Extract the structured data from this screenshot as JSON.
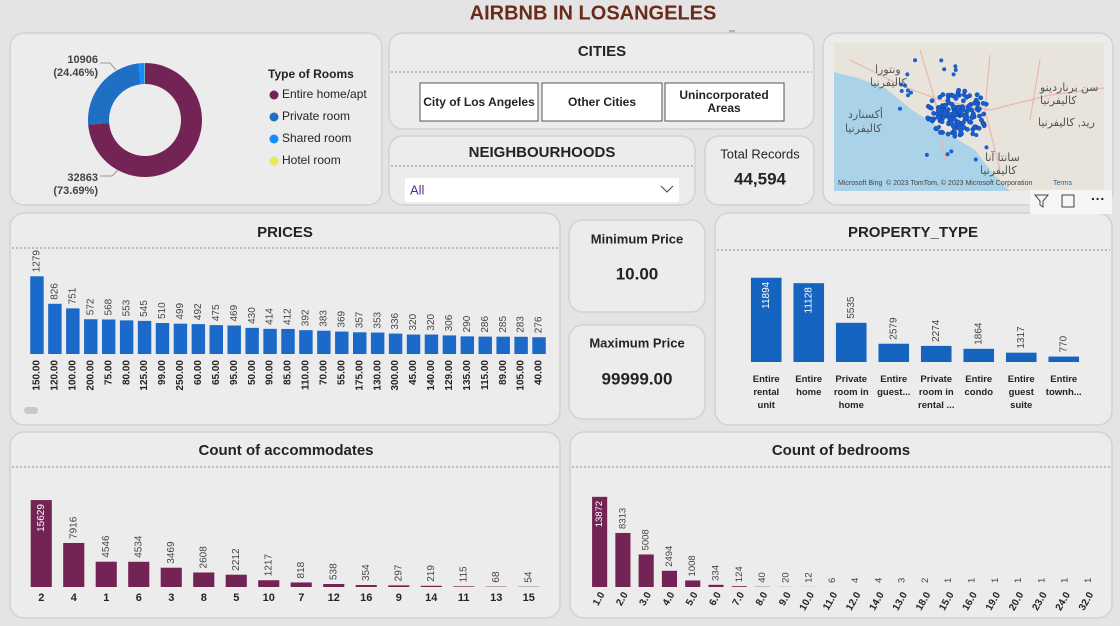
{
  "header": {
    "title": "AIRBNB IN LOSANGELES"
  },
  "chart_data": [
    {
      "type": "pie",
      "donut": true,
      "legend_title": "Type of Rooms",
      "categories": [
        "Entire home/apt",
        "Private room",
        "Shared room",
        "Hotel room"
      ],
      "values": [
        32863,
        10906,
        780,
        45
      ],
      "value_labels": [
        "32863 (73.69%)",
        "10906 (24.46%)",
        null,
        null
      ],
      "colors": [
        "#742454",
        "#1f6fc5",
        "#118dff",
        "#e8e85a"
      ]
    },
    {
      "type": "bar",
      "title": "PRICES",
      "categories": [
        "150.00",
        "120.00",
        "100.00",
        "200.00",
        "75.00",
        "80.00",
        "125.00",
        "99.00",
        "250.00",
        "60.00",
        "65.00",
        "95.00",
        "50.00",
        "90.00",
        "85.00",
        "110.00",
        "70.00",
        "55.00",
        "175.00",
        "130.00",
        "300.00",
        "45.00",
        "140.00",
        "129.00",
        "135.00",
        "115.00",
        "89.00",
        "105.00",
        "40.00"
      ],
      "values": [
        1279,
        826,
        751,
        572,
        568,
        553,
        545,
        510,
        499,
        492,
        475,
        469,
        430,
        414,
        412,
        392,
        383,
        369,
        357,
        353,
        336,
        320,
        320,
        306,
        290,
        286,
        285,
        283,
        276
      ],
      "color": "#1b6ac9",
      "ylim": [
        0,
        1300
      ]
    },
    {
      "type": "bar",
      "title": "PROPERTY_TYPE",
      "categories": [
        "Entire rental unit",
        "Entire home",
        "Private room in home",
        "Entire guest...",
        "Private room in rental ...",
        "Entire condo",
        "Entire guest suite",
        "Entire townh..."
      ],
      "values": [
        11894,
        11128,
        5535,
        2579,
        2274,
        1864,
        1317,
        770
      ],
      "color": "#1565c0",
      "ylim": [
        0,
        12000
      ]
    },
    {
      "type": "bar",
      "title": "Count of accommodates",
      "categories": [
        "2",
        "4",
        "1",
        "6",
        "3",
        "8",
        "5",
        "10",
        "7",
        "12",
        "16",
        "9",
        "14",
        "11",
        "13",
        "15"
      ],
      "values": [
        15629,
        7916,
        4546,
        4534,
        3469,
        2608,
        2212,
        1217,
        818,
        538,
        354,
        297,
        219,
        115,
        68,
        54
      ],
      "color": "#742454",
      "ylim": [
        0,
        16000
      ]
    },
    {
      "type": "bar",
      "title": "Count of bedrooms",
      "categories": [
        "1.0",
        "2.0",
        "3.0",
        "4.0",
        "5.0",
        "6.0",
        "7.0",
        "8.0",
        "9.0",
        "10.0",
        "11.0",
        "12.0",
        "14.0",
        "13.0",
        "18.0",
        "15.0",
        "16.0",
        "19.0",
        "20.0",
        "23.0",
        "24.0",
        "32.0"
      ],
      "values": [
        13872,
        8313,
        5008,
        2494,
        1008,
        334,
        124,
        40,
        20,
        12,
        6,
        4,
        4,
        3,
        2,
        1,
        1,
        1,
        1,
        1,
        1,
        1
      ],
      "color": "#742454",
      "ylim": [
        0,
        14000
      ]
    }
  ],
  "slicers": {
    "cities": {
      "title": "CITIES",
      "options": [
        "City of Los Angeles",
        "Other Cities",
        "Unincorporated Areas"
      ]
    },
    "neighbourhoods": {
      "title": "NEIGHBOURHOODS",
      "selected": "All"
    }
  },
  "cards": [
    {
      "label": "Total Records",
      "value": "44,594"
    },
    {
      "label": "Minimum Price",
      "value": "10.00"
    },
    {
      "label": "Maximum Price",
      "value": "99999.00"
    }
  ],
  "map": {
    "labels": [
      "ونتورا",
      "كاليفرنيا",
      "سن برناردينو",
      "كاليفرنيا",
      "أكسنارد",
      "كاليفرنيا",
      "ريد, كاليفرنيا",
      "سانتا آنا",
      "كاليفرنيا"
    ],
    "logo": "Microsoft Bing",
    "attribution": "© 2023 TomTom, © 2023 Microsoft Corporation",
    "terms": "Terms"
  }
}
